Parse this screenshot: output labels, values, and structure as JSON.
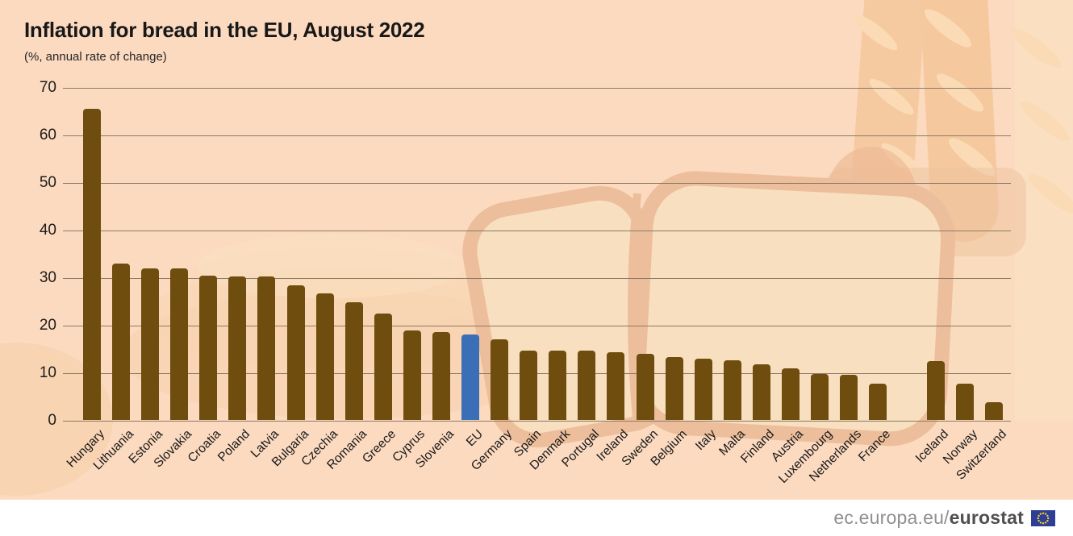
{
  "header": {
    "title": "Inflation for bread in the EU, August 2022",
    "subtitle": "(%, annual rate of change)"
  },
  "footer": {
    "url_prefix": "ec.europa.eu/",
    "url_bold": "eurostat",
    "flag_icon": "eu-flag-icon"
  },
  "colors": {
    "background": "#fbdac0",
    "bar": "#6E4D0F",
    "highlight": "#3A6FB8",
    "gridline": "#8C7A64",
    "footer_url_gray": "#8F8F8F",
    "footer_url_dark": "#4F4F4F",
    "flag_blue": "#2E3E92",
    "flag_star_yellow": "#F8CE2E"
  },
  "chart_data": {
    "type": "bar",
    "title": "Inflation for bread in the EU, August 2022",
    "subtitle": "(%, annual rate of change)",
    "xlabel": "",
    "ylabel": "%, annual rate of change",
    "ylim": [
      0,
      70
    ],
    "yticks": [
      0,
      10,
      20,
      30,
      40,
      50,
      60,
      70
    ],
    "grid": true,
    "legend": false,
    "highlight_category": "EU",
    "gap_before": "Iceland",
    "bars": [
      {
        "label": "Hungary",
        "value": 65.5,
        "group": "eu"
      },
      {
        "label": "Lithuania",
        "value": 33.0,
        "group": "eu"
      },
      {
        "label": "Estonia",
        "value": 32.0,
        "group": "eu"
      },
      {
        "label": "Slovakia",
        "value": 32.0,
        "group": "eu"
      },
      {
        "label": "Croatia",
        "value": 30.5,
        "group": "eu"
      },
      {
        "label": "Poland",
        "value": 30.2,
        "group": "eu"
      },
      {
        "label": "Latvia",
        "value": 30.2,
        "group": "eu"
      },
      {
        "label": "Bulgaria",
        "value": 28.4,
        "group": "eu"
      },
      {
        "label": "Czechia",
        "value": 26.7,
        "group": "eu"
      },
      {
        "label": "Romania",
        "value": 24.9,
        "group": "eu"
      },
      {
        "label": "Greece",
        "value": 22.4,
        "group": "eu"
      },
      {
        "label": "Cyprus",
        "value": 18.9,
        "group": "eu"
      },
      {
        "label": "Slovenia",
        "value": 18.5,
        "group": "eu"
      },
      {
        "label": "EU",
        "value": 18.0,
        "group": "eu",
        "highlight": true
      },
      {
        "label": "Germany",
        "value": 17.1,
        "group": "eu"
      },
      {
        "label": "Spain",
        "value": 14.7,
        "group": "eu"
      },
      {
        "label": "Denmark",
        "value": 14.7,
        "group": "eu"
      },
      {
        "label": "Portugal",
        "value": 14.7,
        "group": "eu"
      },
      {
        "label": "Ireland",
        "value": 14.4,
        "group": "eu"
      },
      {
        "label": "Sweden",
        "value": 14.0,
        "group": "eu"
      },
      {
        "label": "Belgium",
        "value": 13.3,
        "group": "eu"
      },
      {
        "label": "Italy",
        "value": 13.0,
        "group": "eu"
      },
      {
        "label": "Malta",
        "value": 12.6,
        "group": "eu"
      },
      {
        "label": "Finland",
        "value": 11.8,
        "group": "eu"
      },
      {
        "label": "Austria",
        "value": 11.0,
        "group": "eu"
      },
      {
        "label": "Luxembourg",
        "value": 9.7,
        "group": "eu"
      },
      {
        "label": "Netherlands",
        "value": 9.5,
        "group": "eu"
      },
      {
        "label": "France",
        "value": 7.7,
        "group": "eu"
      },
      {
        "label": "Iceland",
        "value": 12.4,
        "group": "non-eu"
      },
      {
        "label": "Norway",
        "value": 7.7,
        "group": "non-eu"
      },
      {
        "label": "Switzerland",
        "value": 3.8,
        "group": "non-eu"
      }
    ]
  }
}
